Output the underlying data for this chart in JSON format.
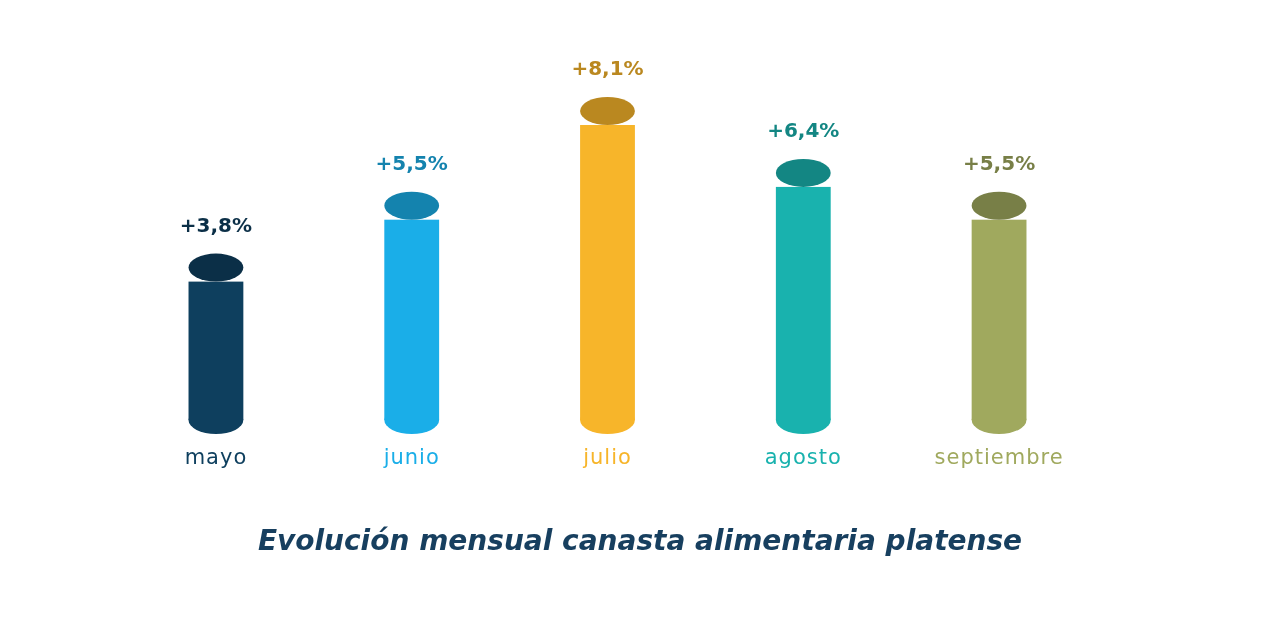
{
  "chart_data": {
    "type": "bar",
    "title": "Evolución mensual canasta alimentaria platense",
    "categories": [
      "mayo",
      "junio",
      "julio",
      "agosto",
      "septiembre"
    ],
    "values": [
      3.8,
      5.5,
      8.1,
      6.4,
      5.5
    ],
    "value_labels": [
      "+3,8%",
      "+5,5%",
      "+8,1%",
      "+6,4%",
      "+5,5%"
    ],
    "colors": [
      "#0e3f5e",
      "#1aaee8",
      "#f7b52a",
      "#19b2ae",
      "#a0a95e"
    ]
  }
}
